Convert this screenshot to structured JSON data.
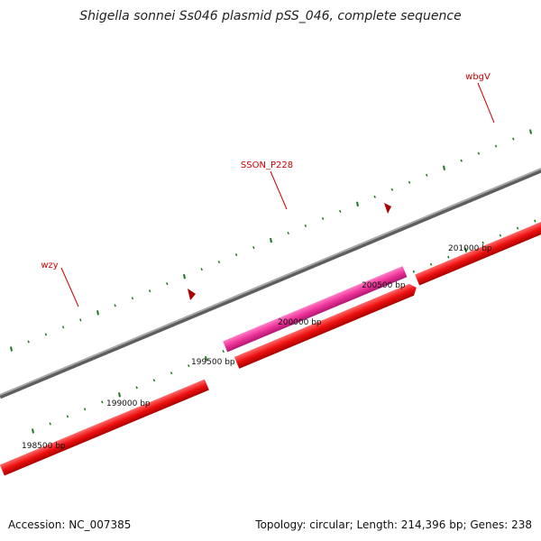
{
  "title": "Shigella sonnei Ss046 plasmid pSS_046, complete sequence",
  "footer": {
    "accession": "Accession: NC_007385",
    "summary": "Topology: circular; Length: 214,396 bp; Genes: 238"
  },
  "colors": {
    "backbone": "#8a8a8a",
    "gene_red": "#ee1111",
    "gene_pink": "#ee3399",
    "tick": "#1a7a1a",
    "label_red": "#cc0000"
  },
  "ruler": {
    "labels": [
      "198500 bp",
      "199000 bp",
      "199500 bp",
      "200000 bp",
      "200500 bp",
      "201000 bp"
    ]
  },
  "genes": [
    {
      "name": "wzy",
      "color": "red"
    },
    {
      "name": "SSON_P228",
      "color": "pink"
    },
    {
      "name": "wbgV",
      "color": "red"
    }
  ]
}
